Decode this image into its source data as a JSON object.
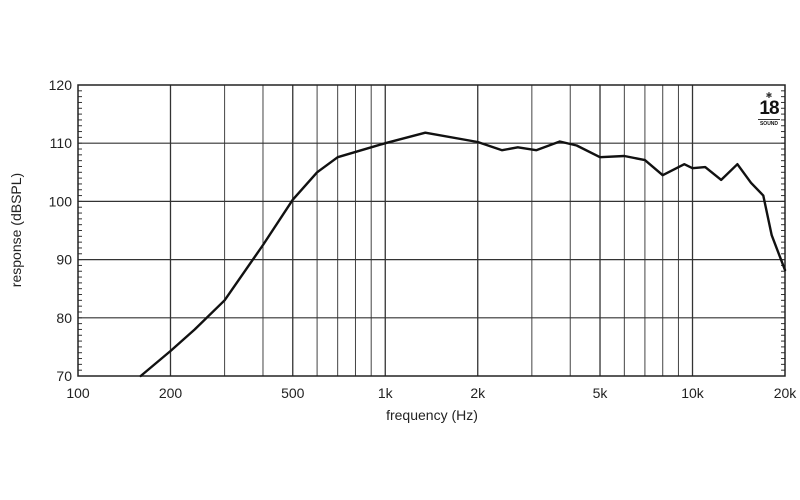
{
  "chart_data": {
    "type": "line",
    "title": "",
    "xlabel": "frequency (Hz)",
    "ylabel": "response (dBSPL)",
    "xscale": "log",
    "xlim": [
      100,
      20000
    ],
    "ylim": [
      70,
      120
    ],
    "grid": true,
    "legend": null,
    "x_tick_labels": [
      "100",
      "200",
      "500",
      "1k",
      "2k",
      "5k",
      "10k",
      "20k"
    ],
    "x_tick_values": [
      100,
      200,
      500,
      1000,
      2000,
      5000,
      10000,
      20000
    ],
    "y_tick_labels": [
      "70",
      "80",
      "90",
      "100",
      "110",
      "120"
    ],
    "y_tick_values": [
      70,
      80,
      90,
      100,
      110,
      120
    ],
    "series": [
      {
        "name": "response",
        "x": [
          160,
          200,
          240,
          300,
          400,
          500,
          600,
          700,
          900,
          1000,
          1350,
          2000,
          2400,
          2700,
          3100,
          3700,
          4200,
          5000,
          6000,
          7000,
          8000,
          9400,
          10000,
          11000,
          12400,
          14000,
          15500,
          17000,
          18100,
          20000
        ],
        "values": [
          70,
          74.3,
          78,
          83,
          92.5,
          100.3,
          105,
          107.6,
          109.3,
          110,
          111.8,
          110.2,
          108.8,
          109.3,
          108.8,
          110.3,
          109.6,
          107.6,
          107.8,
          107.1,
          104.5,
          106.4,
          105.7,
          105.9,
          103.7,
          106.4,
          103.2,
          101,
          94.2,
          88.2
        ]
      }
    ]
  },
  "logo": {
    "number": "18",
    "word": "SOUND"
  }
}
